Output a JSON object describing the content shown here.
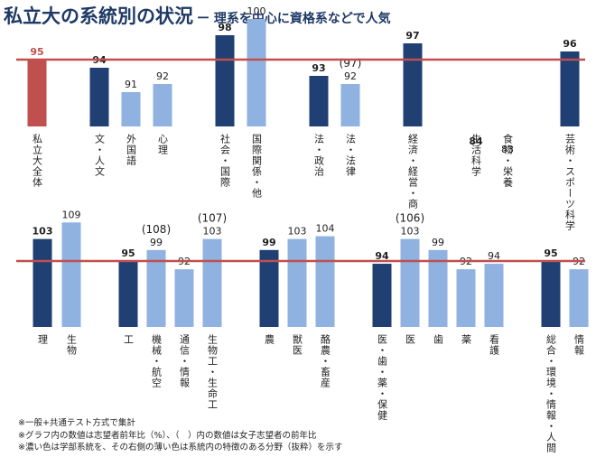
{
  "header": {
    "title": "私立大の系統別の状況",
    "subtitle": "ー 理系を中心に資格系などで人気"
  },
  "colors": {
    "main_bar": "#203f73",
    "sub_bar": "#8fb2e0",
    "total_bar": "#c0504d",
    "reference_line": "#c0504d",
    "label_main": "#222222",
    "label_total": "#c0504d"
  },
  "chart_data": [
    {
      "type": "bar",
      "reference_value": 95,
      "ylim": [
        75,
        105
      ],
      "bars": [
        {
          "category": "私立大全体",
          "value": 95,
          "kind": "total",
          "label": "95"
        },
        {
          "category": "文・人文",
          "value": 94,
          "kind": "main",
          "label": "94"
        },
        {
          "category": "外国語",
          "value": 91,
          "kind": "sub",
          "label": "91"
        },
        {
          "category": "心理",
          "value": 92,
          "kind": "sub",
          "label": "92"
        },
        {
          "category": "社会・国際",
          "value": 98,
          "kind": "main",
          "label": "98"
        },
        {
          "category": "国際関係・他",
          "value": 100,
          "kind": "sub",
          "label": "100"
        },
        {
          "category": "法・政治",
          "value": 93,
          "kind": "main",
          "label": "93"
        },
        {
          "category": "法・法律",
          "value": 92,
          "kind": "sub",
          "label": "92",
          "note": "(97)"
        },
        {
          "category": "経済・経営・商",
          "value": 97,
          "kind": "main",
          "label": "97"
        },
        {
          "category": "生活科学",
          "value": 84,
          "kind": "main",
          "label": "84"
        },
        {
          "category": "食物・栄養",
          "value": 83,
          "kind": "sub",
          "label": "83"
        },
        {
          "category": "芸術・スポーツ科学",
          "value": 96,
          "kind": "main",
          "label": "96"
        }
      ]
    },
    {
      "type": "bar",
      "reference_value": 95,
      "ylim": [
        75,
        112
      ],
      "bars": [
        {
          "category": "理",
          "value": 103,
          "kind": "main",
          "label": "103"
        },
        {
          "category": "生物",
          "value": 109,
          "kind": "sub",
          "label": "109"
        },
        {
          "category": "工",
          "value": 95,
          "kind": "main",
          "label": "95"
        },
        {
          "category": "機械・航空",
          "value": 99,
          "kind": "sub",
          "label": "99",
          "note": "(108)"
        },
        {
          "category": "通信・情報",
          "value": 92,
          "kind": "sub",
          "label": "92"
        },
        {
          "category": "生物工・生命工",
          "value": 103,
          "kind": "sub",
          "label": "103",
          "note": "(107)"
        },
        {
          "category": "農",
          "value": 99,
          "kind": "main",
          "label": "99"
        },
        {
          "category": "獣医",
          "value": 103,
          "kind": "sub",
          "label": "103"
        },
        {
          "category": "酪農・畜産",
          "value": 104,
          "kind": "sub",
          "label": "104"
        },
        {
          "category": "医・歯・薬・保健",
          "value": 94,
          "kind": "main",
          "label": "94"
        },
        {
          "category": "医",
          "value": 103,
          "kind": "sub",
          "label": "103",
          "note": "(106)"
        },
        {
          "category": "歯",
          "value": 99,
          "kind": "sub",
          "label": "99"
        },
        {
          "category": "薬",
          "value": 92,
          "kind": "sub",
          "label": "92"
        },
        {
          "category": "看護",
          "value": 94,
          "kind": "sub",
          "label": "94"
        },
        {
          "category": "総合・環境・情報・人間",
          "value": 95,
          "kind": "main",
          "label": "95"
        },
        {
          "category": "情報",
          "value": 92,
          "kind": "sub",
          "label": "92"
        }
      ]
    }
  ],
  "footnotes": [
    "※一般+共通テスト方式で集計",
    "※グラフ内の数値は志望者前年比（%）、（　）内の数値は女子志望者の前年比",
    "※濃い色は学部系統を、その右側の薄い色は系統内の特徴のある分野（抜粋）を示す"
  ]
}
